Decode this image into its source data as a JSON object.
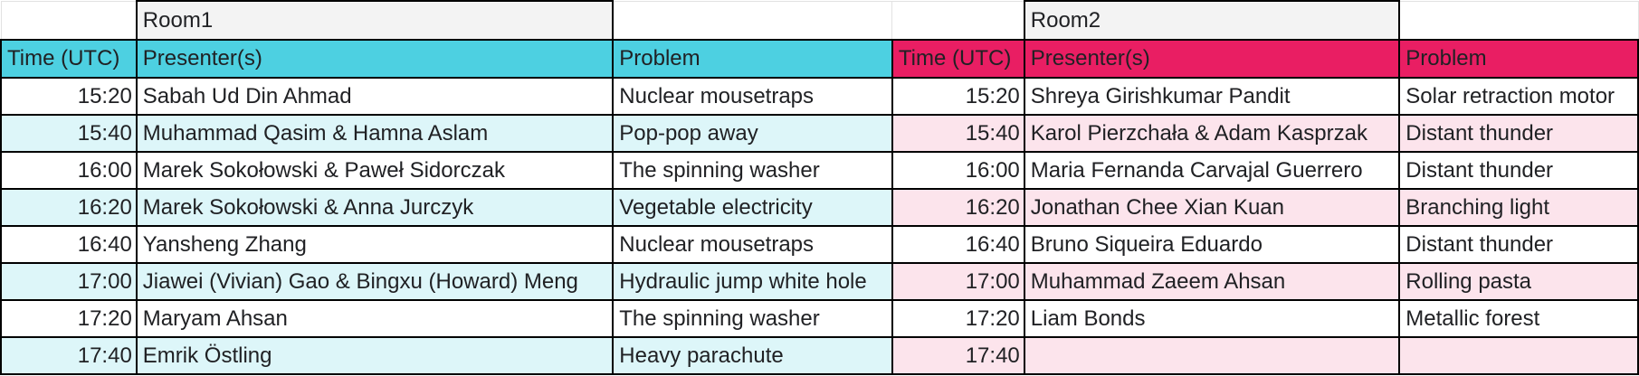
{
  "rooms": {
    "room1_label": "Room1",
    "room2_label": "Room2"
  },
  "headers": {
    "time": "Time (UTC)",
    "presenters": "Presenter(s)",
    "problem": "Problem"
  },
  "colors": {
    "room1_header": "#4dd0e1",
    "room2_header": "#e91e63",
    "room1_stripe": "#ddf6f9",
    "room2_stripe": "#fce4ec"
  },
  "rows": [
    {
      "time": "15:20",
      "r1_presenters": "Sabah Ud Din Ahmad",
      "r1_problem": "Nuclear mousetraps",
      "r2_time": "15:20",
      "r2_presenters": "Shreya Girishkumar Pandit",
      "r2_problem": "Solar retraction motor"
    },
    {
      "time": "15:40",
      "r1_presenters": "Muhammad Qasim & Hamna Aslam",
      "r1_problem": "Pop-pop away",
      "r2_time": "15:40",
      "r2_presenters": "Karol Pierzchała & Adam Kasprzak",
      "r2_problem": "Distant thunder"
    },
    {
      "time": "16:00",
      "r1_presenters": "Marek Sokołowski & Paweł Sidorczak",
      "r1_problem": "The spinning washer",
      "r2_time": "16:00",
      "r2_presenters": "Maria Fernanda Carvajal Guerrero",
      "r2_problem": "Distant thunder"
    },
    {
      "time": "16:20",
      "r1_presenters": "Marek Sokołowski & Anna Jurczyk",
      "r1_problem": "Vegetable electricity",
      "r2_time": "16:20",
      "r2_presenters": "Jonathan Chee Xian Kuan",
      "r2_problem": "Branching light"
    },
    {
      "time": "16:40",
      "r1_presenters": "Yansheng Zhang",
      "r1_problem": "Nuclear mousetraps",
      "r2_time": "16:40",
      "r2_presenters": "Bruno Siqueira Eduardo",
      "r2_problem": "Distant thunder"
    },
    {
      "time": "17:00",
      "r1_presenters": "Jiawei (Vivian) Gao & Bingxu (Howard) Meng",
      "r1_problem": "Hydraulic jump white hole",
      "r2_time": "17:00",
      "r2_presenters": "Muhammad Zaeem Ahsan",
      "r2_problem": "Rolling pasta"
    },
    {
      "time": "17:20",
      "r1_presenters": "Maryam Ahsan",
      "r1_problem": "The spinning washer",
      "r2_time": "17:20",
      "r2_presenters": "Liam Bonds",
      "r2_problem": "Metallic forest"
    },
    {
      "time": "17:40",
      "r1_presenters": "Emrik Östling",
      "r1_problem": "Heavy parachute",
      "r2_time": "17:40",
      "r2_presenters": "",
      "r2_problem": ""
    }
  ]
}
